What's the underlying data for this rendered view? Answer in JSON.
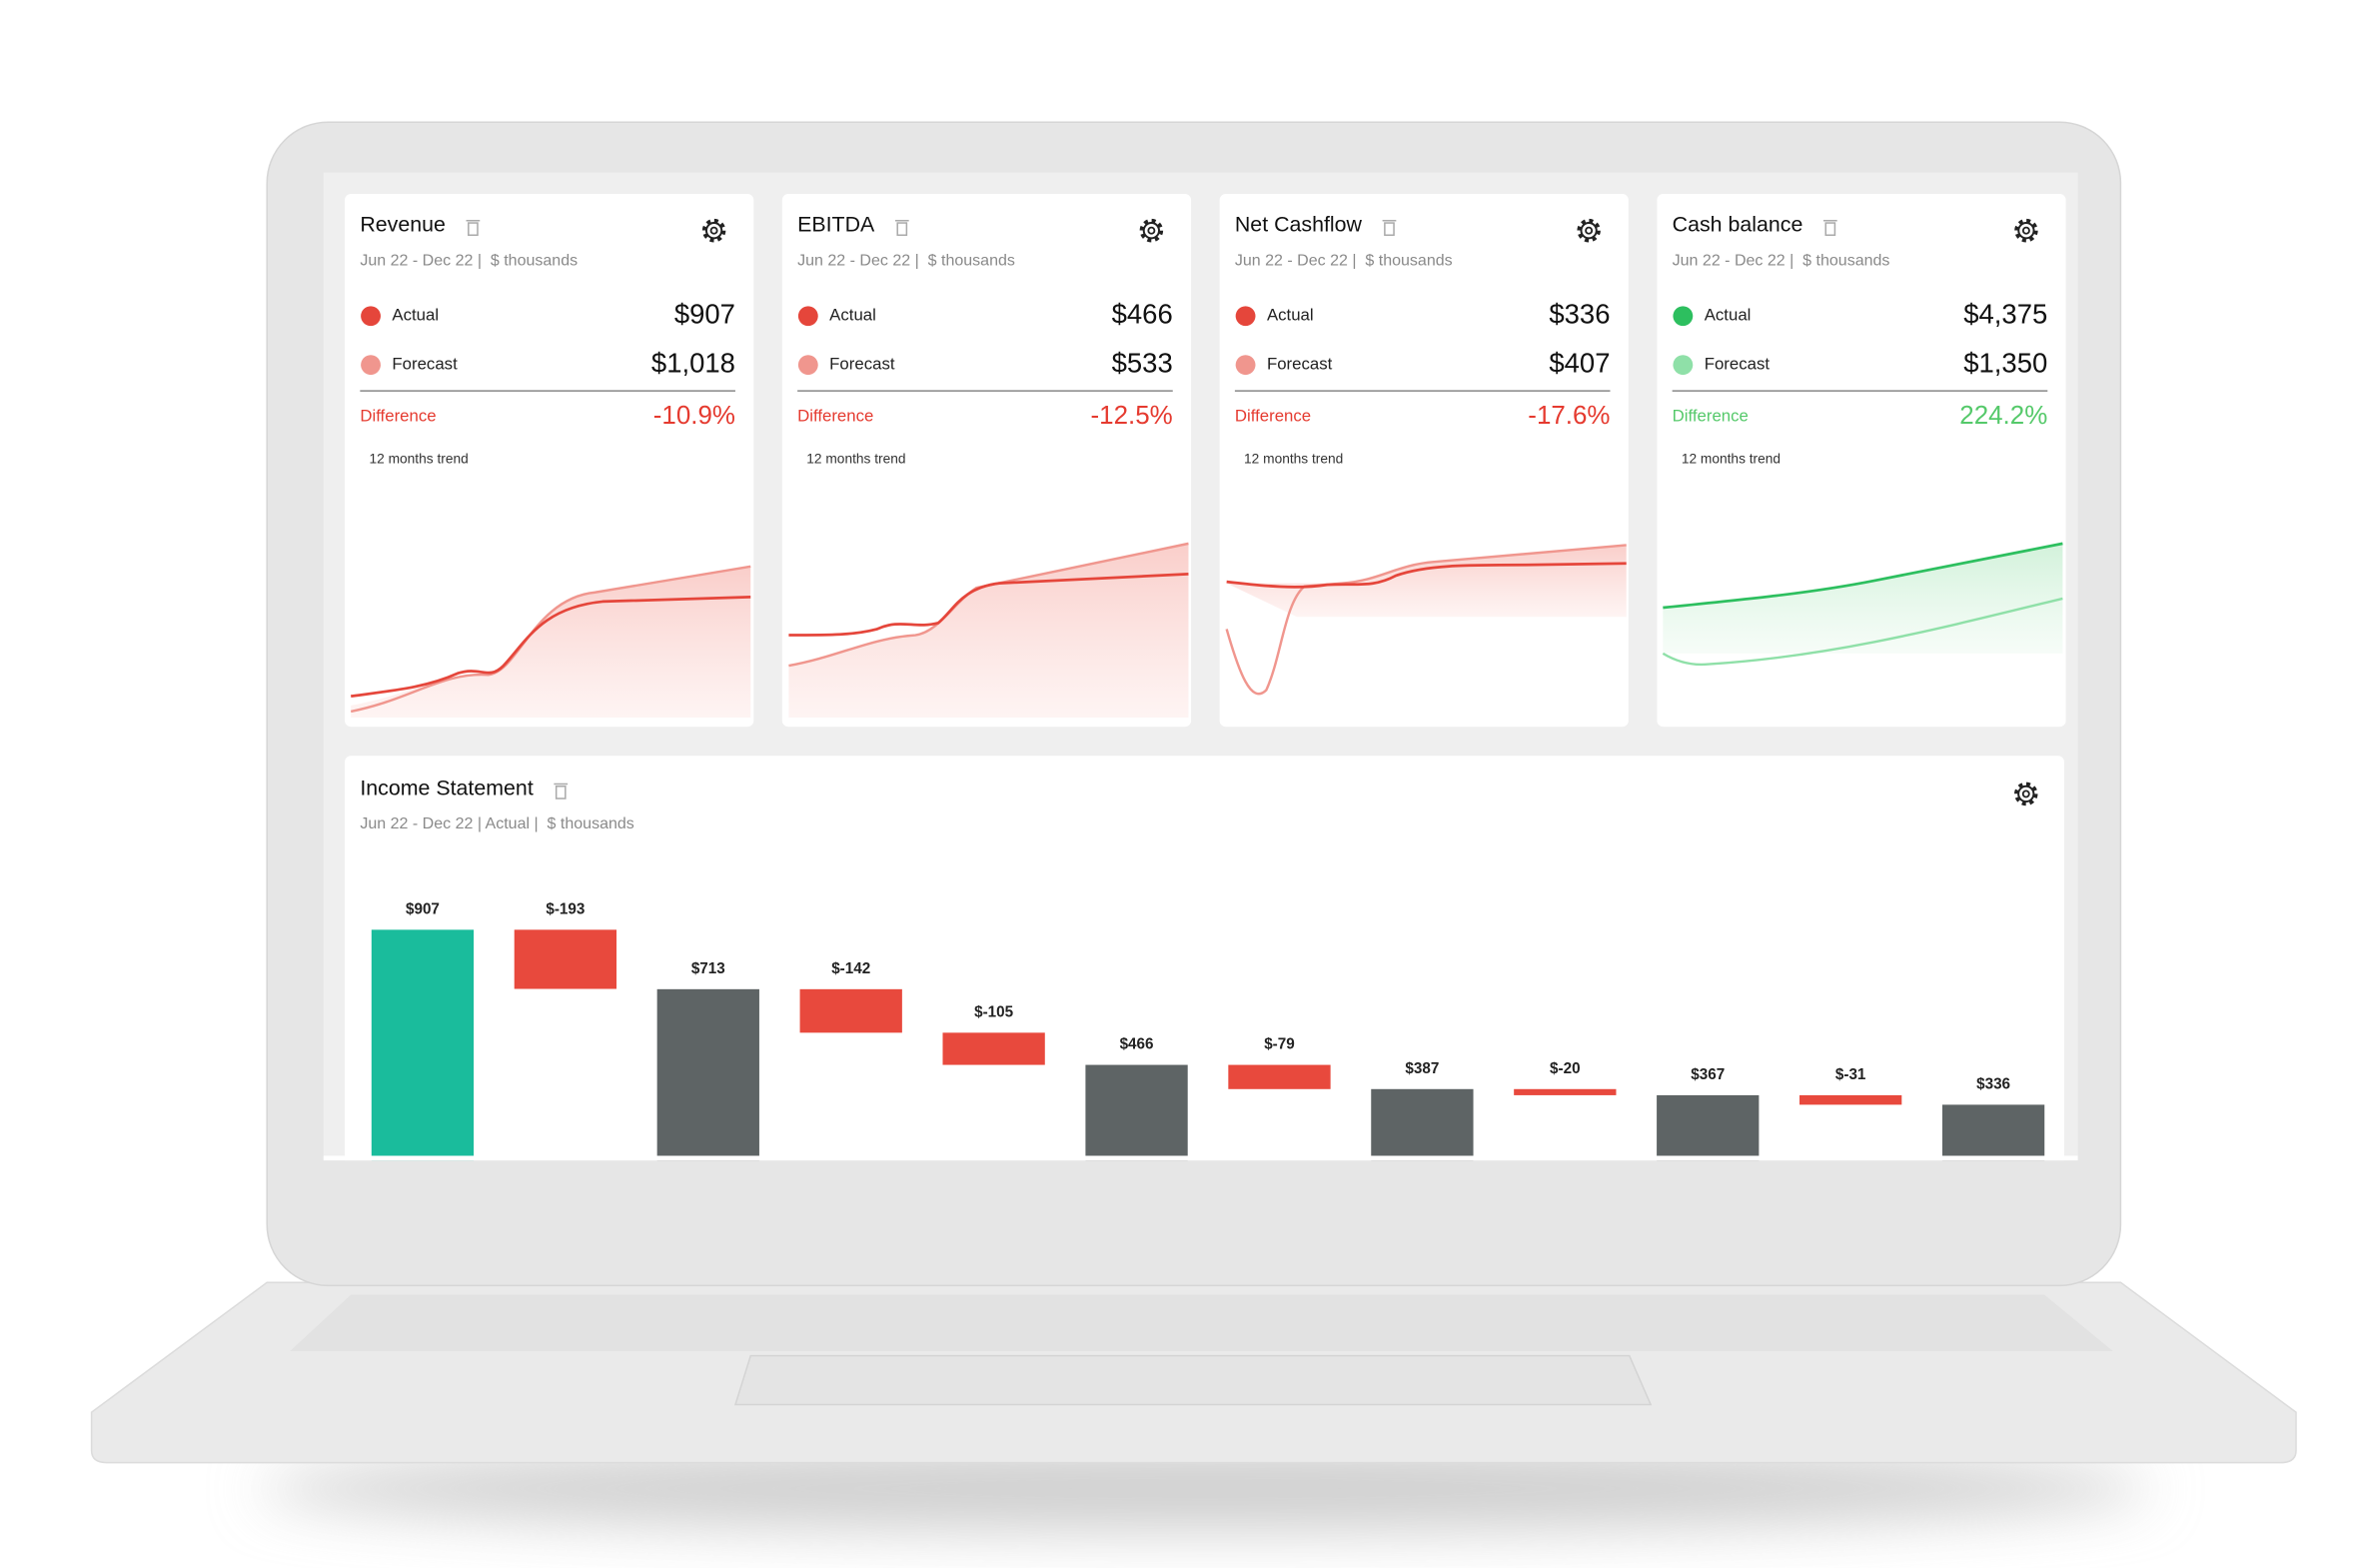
{
  "cards": [
    {
      "title": "Revenue",
      "subtitle": "Jun 22 - Dec 22 |  $ thousands",
      "actual_label": "Actual",
      "actual": "$907",
      "forecast_label": "Forecast",
      "forecast": "$1,018",
      "difference_label": "Difference",
      "difference": "-10.9%",
      "trend_label": "12 months trend",
      "actual_color": "#e5463b",
      "forecast_color": "#f0968e",
      "difference_color": "#e53a2f"
    },
    {
      "title": "EBITDA",
      "subtitle": "Jun 22 - Dec 22 |  $ thousands",
      "actual_label": "Actual",
      "actual": "$466",
      "forecast_label": "Forecast",
      "forecast": "$533",
      "difference_label": "Difference",
      "difference": "-12.5%",
      "trend_label": "12 months trend",
      "actual_color": "#e5463b",
      "forecast_color": "#f0968e",
      "difference_color": "#e53a2f"
    },
    {
      "title": "Net Cashflow",
      "subtitle": "Jun 22 - Dec 22 |  $ thousands",
      "actual_label": "Actual",
      "actual": "$336",
      "forecast_label": "Forecast",
      "forecast": "$407",
      "difference_label": "Difference",
      "difference": "-17.6%",
      "trend_label": "12 months trend",
      "actual_color": "#e5463b",
      "forecast_color": "#f0968e",
      "difference_color": "#e53a2f"
    },
    {
      "title": "Cash balance",
      "subtitle": "Jun 22 - Dec 22 |  $ thousands",
      "actual_label": "Actual",
      "actual": "$4,375",
      "forecast_label": "Forecast",
      "forecast": "$1,350",
      "difference_label": "Difference",
      "difference": "224.2%",
      "trend_label": "12 months trend",
      "actual_color": "#2dbf5f",
      "forecast_color": "#8fe0a8",
      "difference_color": "#55c96a"
    }
  ],
  "chart_data": {
    "type": "waterfall",
    "title": "Income Statement",
    "subtitle": "Jun 22 - Dec 22 | Actual |  $ thousands",
    "values": [
      907,
      -193,
      713,
      -142,
      -105,
      466,
      -79,
      387,
      -20,
      367,
      -31,
      336
    ],
    "value_labels": [
      "$907",
      "$-193",
      "$713",
      "$-142",
      "$-105",
      "$466",
      "$-79",
      "$387",
      "$-20",
      "$367",
      "$-31",
      "$336"
    ],
    "measures": [
      "absolute",
      "relative",
      "total",
      "relative",
      "relative",
      "total",
      "relative",
      "total",
      "relative",
      "total",
      "relative",
      "total"
    ],
    "colors": {
      "absolute": "#1abc9c",
      "relative": "#e8493d",
      "total": "#5e6465"
    }
  }
}
